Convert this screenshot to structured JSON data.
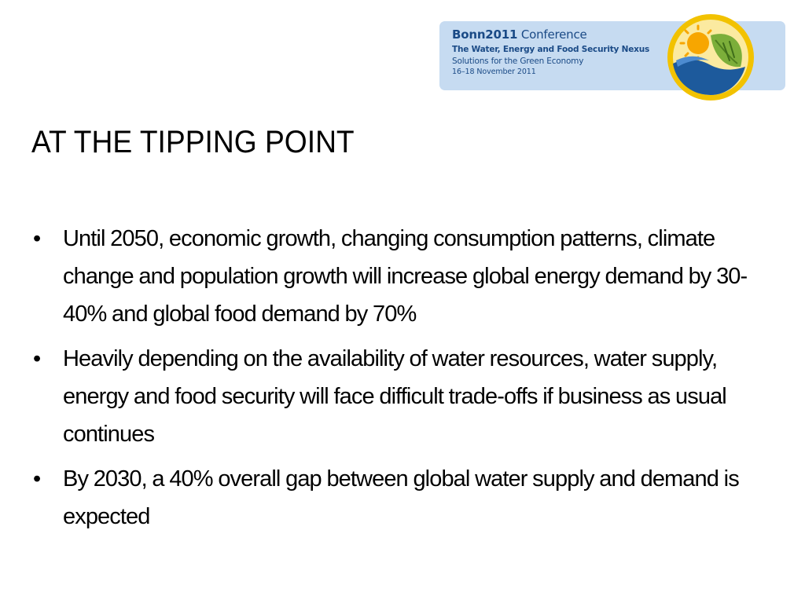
{
  "banner": {
    "title_bold": "Bonn2011",
    "title_rest": " Conference",
    "subtitle": "The Water, Energy and Food Security Nexus",
    "tagline": "Solutions for the Green Economy",
    "dates": "16–18 November 2011"
  },
  "slide": {
    "title": "AT THE TIPPING POINT",
    "bullet_symbol": "•",
    "bullets": [
      "Until 2050, economic growth, changing consumption patterns, climate change and population growth will increase global energy demand by 30-40% and global food demand by 70%",
      "Heavily depending on the availability of water resources, water supply, energy and food security will face difficult trade-offs if business as usual continues",
      "By 2030, a 40% overall gap between global water supply and demand is expected"
    ]
  },
  "colors": {
    "banner_bg": "#c6dbf1",
    "banner_text": "#1a4a86",
    "logo_ring": "#f2c200",
    "logo_green": "#7cae3a",
    "logo_water": "#1d5a9c",
    "text": "#000000"
  },
  "icons": {
    "conference_logo": "sun-leaf-water-emblem"
  }
}
